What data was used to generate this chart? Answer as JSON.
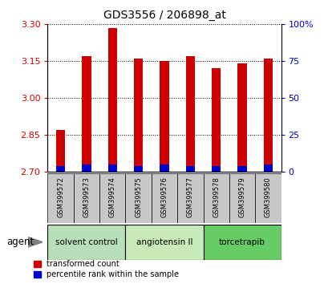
{
  "title": "GDS3556 / 206898_at",
  "samples": [
    "GSM399572",
    "GSM399573",
    "GSM399574",
    "GSM399575",
    "GSM399576",
    "GSM399577",
    "GSM399578",
    "GSM399579",
    "GSM399580"
  ],
  "transformed_count": [
    2.87,
    3.17,
    3.285,
    3.16,
    3.15,
    3.17,
    3.12,
    3.14,
    3.16
  ],
  "percentile_rank": [
    4,
    5,
    5,
    4,
    5,
    4,
    4,
    4,
    5
  ],
  "y_min": 2.7,
  "y_max": 3.3,
  "y_ticks_left": [
    2.7,
    2.85,
    3.0,
    3.15,
    3.3
  ],
  "y_ticks_right": [
    0,
    25,
    50,
    75,
    100
  ],
  "left_tick_color": "#cc0000",
  "right_tick_color": "#0000cc",
  "bar_color_red": "#cc0000",
  "bar_color_blue": "#0000cc",
  "groups": [
    {
      "label": "solvent control",
      "start": 0,
      "end": 3,
      "color": "#b8e0b8"
    },
    {
      "label": "angiotensin II",
      "start": 3,
      "end": 6,
      "color": "#c8eab8"
    },
    {
      "label": "torcetrapib",
      "start": 6,
      "end": 9,
      "color": "#66cc66"
    }
  ],
  "agent_label": "agent",
  "legend_red": "transformed count",
  "legend_blue": "percentile rank within the sample",
  "bar_width": 0.35,
  "sample_bg": "#c8c8c8"
}
